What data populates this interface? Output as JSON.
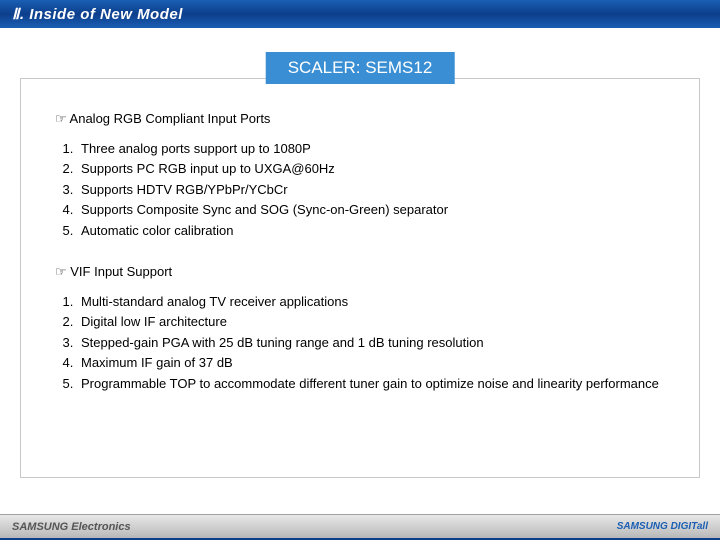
{
  "header": {
    "title": "Ⅱ. Inside of New Model"
  },
  "badge": "SCALER: SEMS12",
  "section1": {
    "heading": "☞ Analog RGB Compliant Input Ports",
    "items": [
      "Three analog ports support up to 1080P",
      "Supports PC RGB input up to UXGA@60Hz",
      "Supports HDTV RGB/YPbPr/YCbCr",
      "Supports Composite Sync and SOG (Sync-on-Green) separator",
      "Automatic color calibration"
    ]
  },
  "section2": {
    "heading": "☞ VIF Input Support",
    "items": [
      "Multi-standard analog TV receiver applications",
      "Digital low IF architecture",
      "Stepped-gain PGA with 25 dB tuning range and 1 dB tuning resolution",
      "Maximum IF gain of 37 dB",
      "Programmable TOP to accommodate different tuner gain to optimize noise and linearity performance"
    ]
  },
  "footer": {
    "left": "SAMSUNG Electronics",
    "right": "SAMSUNG DIGITall"
  },
  "colors": {
    "header_bg": "#1a5fb4",
    "badge_bg": "#3a8fd4",
    "frame_border": "#c8c8c8",
    "footer_accent": "#0d3e8c"
  }
}
